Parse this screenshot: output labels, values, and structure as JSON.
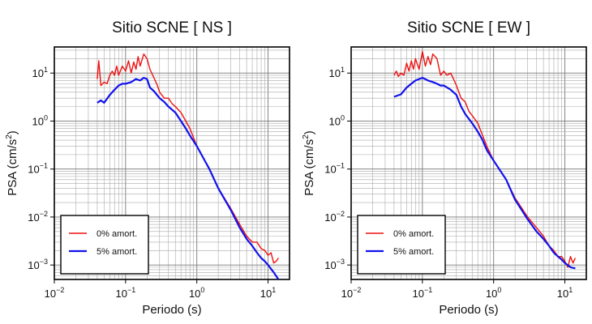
{
  "chart_data": [
    {
      "type": "line",
      "title": "Sitio SCNE [ NS ]",
      "xlabel": "Periodo (s)",
      "ylabel_main": "PSA (cm/s",
      "ylabel_sup": "2",
      "ylabel_close": ")",
      "xscale": "log",
      "yscale": "log",
      "xlim": [
        0.01,
        20
      ],
      "ylim": [
        0.0005,
        35
      ],
      "grid": true,
      "legend_position": "bottom-left",
      "xtick_exponents": [
        "-2",
        "-1",
        "0",
        "1"
      ],
      "ytick_exponents": [
        "-3",
        "-2",
        "-1",
        "0",
        "1"
      ],
      "tick_base": "10",
      "series": [
        {
          "name": "0% amort.",
          "color": "#ee1111",
          "points": [
            [
              0.04,
              7.5
            ],
            [
              0.042,
              18
            ],
            [
              0.045,
              5.5
            ],
            [
              0.05,
              6.5
            ],
            [
              0.055,
              6
            ],
            [
              0.06,
              9
            ],
            [
              0.065,
              11
            ],
            [
              0.07,
              9
            ],
            [
              0.075,
              14
            ],
            [
              0.08,
              9
            ],
            [
              0.09,
              14
            ],
            [
              0.1,
              11
            ],
            [
              0.11,
              18
            ],
            [
              0.12,
              10
            ],
            [
              0.13,
              17
            ],
            [
              0.14,
              12
            ],
            [
              0.15,
              22
            ],
            [
              0.16,
              14
            ],
            [
              0.18,
              25
            ],
            [
              0.2,
              20
            ],
            [
              0.22,
              12
            ],
            [
              0.25,
              8
            ],
            [
              0.28,
              5.5
            ],
            [
              0.3,
              4
            ],
            [
              0.35,
              3
            ],
            [
              0.4,
              3
            ],
            [
              0.45,
              2.3
            ],
            [
              0.5,
              2
            ],
            [
              0.6,
              1.5
            ],
            [
              0.7,
              1
            ],
            [
              0.8,
              0.7
            ],
            [
              1,
              0.3
            ],
            [
              1.5,
              0.1
            ],
            [
              2,
              0.04
            ],
            [
              3,
              0.015
            ],
            [
              4,
              0.007
            ],
            [
              5,
              0.004
            ],
            [
              6,
              0.003
            ],
            [
              7,
              0.003
            ],
            [
              8,
              0.0022
            ],
            [
              9,
              0.002
            ],
            [
              10,
              0.0016
            ],
            [
              11,
              0.0018
            ],
            [
              12,
              0.0011
            ],
            [
              13,
              0.0012
            ],
            [
              14,
              0.0014
            ]
          ]
        },
        {
          "name": "5% amort.",
          "color": "#1111ee",
          "points": [
            [
              0.04,
              2.4
            ],
            [
              0.045,
              2.7
            ],
            [
              0.05,
              2.4
            ],
            [
              0.06,
              3.5
            ],
            [
              0.07,
              4.5
            ],
            [
              0.08,
              5.5
            ],
            [
              0.09,
              6
            ],
            [
              0.1,
              6
            ],
            [
              0.12,
              6.5
            ],
            [
              0.14,
              7.5
            ],
            [
              0.16,
              7
            ],
            [
              0.18,
              8
            ],
            [
              0.2,
              7.5
            ],
            [
              0.22,
              5
            ],
            [
              0.25,
              4.2
            ],
            [
              0.3,
              3
            ],
            [
              0.35,
              2.5
            ],
            [
              0.4,
              2
            ],
            [
              0.5,
              1.5
            ],
            [
              0.6,
              1
            ],
            [
              0.7,
              0.7
            ],
            [
              0.8,
              0.5
            ],
            [
              1,
              0.3
            ],
            [
              1.5,
              0.1
            ],
            [
              2,
              0.04
            ],
            [
              3,
              0.014
            ],
            [
              4,
              0.006
            ],
            [
              5,
              0.0035
            ],
            [
              6,
              0.0025
            ],
            [
              7,
              0.0018
            ],
            [
              8,
              0.0014
            ],
            [
              9,
              0.0012
            ],
            [
              10,
              0.001
            ],
            [
              12,
              0.0007
            ],
            [
              14,
              0.0005
            ]
          ]
        }
      ]
    },
    {
      "type": "line",
      "title": "Sitio SCNE [ EW ]",
      "xlabel": "Periodo (s)",
      "ylabel_main": "PSA (cm/s",
      "ylabel_sup": "2",
      "ylabel_close": ")",
      "xscale": "log",
      "yscale": "log",
      "xlim": [
        0.01,
        20
      ],
      "ylim": [
        0.0005,
        35
      ],
      "grid": true,
      "legend_position": "bottom-left",
      "xtick_exponents": [
        "-2",
        "-1",
        "0",
        "1"
      ],
      "ytick_exponents": [
        "-3",
        "-2",
        "-1",
        "0",
        "1"
      ],
      "tick_base": "10",
      "series": [
        {
          "name": "0% amort.",
          "color": "#ee1111",
          "points": [
            [
              0.04,
              9
            ],
            [
              0.043,
              11
            ],
            [
              0.046,
              8.5
            ],
            [
              0.05,
              10
            ],
            [
              0.055,
              9
            ],
            [
              0.06,
              16
            ],
            [
              0.065,
              11
            ],
            [
              0.07,
              18
            ],
            [
              0.075,
              12
            ],
            [
              0.08,
              20
            ],
            [
              0.09,
              12
            ],
            [
              0.1,
              28
            ],
            [
              0.11,
              14
            ],
            [
              0.12,
              22
            ],
            [
              0.13,
              15
            ],
            [
              0.14,
              25
            ],
            [
              0.16,
              20
            ],
            [
              0.18,
              9
            ],
            [
              0.2,
              11
            ],
            [
              0.22,
              9
            ],
            [
              0.25,
              10
            ],
            [
              0.28,
              7
            ],
            [
              0.3,
              5.5
            ],
            [
              0.35,
              3
            ],
            [
              0.4,
              2.5
            ],
            [
              0.45,
              1.6
            ],
            [
              0.5,
              1.3
            ],
            [
              0.6,
              0.9
            ],
            [
              0.7,
              0.5
            ],
            [
              0.8,
              0.3
            ],
            [
              1,
              0.15
            ],
            [
              1.5,
              0.06
            ],
            [
              2,
              0.025
            ],
            [
              3,
              0.01
            ],
            [
              4,
              0.006
            ],
            [
              5,
              0.004
            ],
            [
              6,
              0.0025
            ],
            [
              7,
              0.002
            ],
            [
              8,
              0.0015
            ],
            [
              9,
              0.0015
            ],
            [
              10,
              0.0012
            ],
            [
              11,
              0.0009
            ],
            [
              12,
              0.0015
            ],
            [
              13,
              0.0011
            ],
            [
              14,
              0.0014
            ]
          ]
        },
        {
          "name": "5% amort.",
          "color": "#1111ee",
          "points": [
            [
              0.04,
              3.2
            ],
            [
              0.05,
              3.6
            ],
            [
              0.06,
              5
            ],
            [
              0.07,
              6
            ],
            [
              0.08,
              7
            ],
            [
              0.09,
              7.5
            ],
            [
              0.1,
              8
            ],
            [
              0.12,
              7
            ],
            [
              0.14,
              6.5
            ],
            [
              0.16,
              6
            ],
            [
              0.18,
              5.5
            ],
            [
              0.2,
              5.5
            ],
            [
              0.25,
              4.5
            ],
            [
              0.3,
              3.5
            ],
            [
              0.35,
              2
            ],
            [
              0.4,
              1.4
            ],
            [
              0.5,
              0.9
            ],
            [
              0.6,
              0.6
            ],
            [
              0.7,
              0.4
            ],
            [
              0.8,
              0.25
            ],
            [
              1,
              0.15
            ],
            [
              1.5,
              0.06
            ],
            [
              2,
              0.023
            ],
            [
              3,
              0.009
            ],
            [
              4,
              0.005
            ],
            [
              5,
              0.0035
            ],
            [
              6,
              0.0025
            ],
            [
              7,
              0.0018
            ],
            [
              8,
              0.0015
            ],
            [
              9,
              0.0013
            ],
            [
              10,
              0.0011
            ],
            [
              12,
              0.0009
            ],
            [
              14,
              0.00085
            ]
          ]
        }
      ]
    }
  ]
}
